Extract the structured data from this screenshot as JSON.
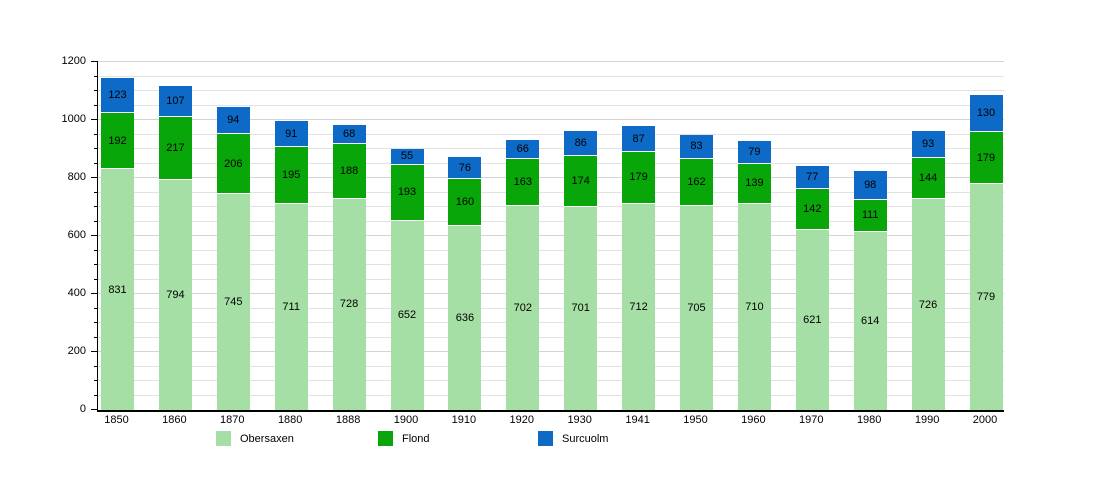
{
  "chart_data": {
    "type": "bar",
    "stacked": true,
    "title": "",
    "xlabel": "",
    "ylabel": "",
    "categories": [
      "1850",
      "1860",
      "1870",
      "1880",
      "1888",
      "1900",
      "1910",
      "1920",
      "1930",
      "1941",
      "1950",
      "1960",
      "1970",
      "1980",
      "1990",
      "2000"
    ],
    "series": [
      {
        "name": "Obersaxen",
        "color": "#a6dfa6",
        "values": [
          831,
          794,
          745,
          711,
          728,
          652,
          636,
          702,
          701,
          712,
          705,
          710,
          621,
          614,
          726,
          779
        ]
      },
      {
        "name": "Flond",
        "color": "#09a609",
        "values": [
          192,
          217,
          206,
          195,
          188,
          193,
          160,
          163,
          174,
          179,
          162,
          139,
          142,
          111,
          144,
          179
        ]
      },
      {
        "name": "Surcuolm",
        "color": "#0d6bc7",
        "values": [
          123,
          107,
          94,
          91,
          68,
          55,
          76,
          66,
          86,
          87,
          83,
          79,
          77,
          98,
          93,
          130
        ]
      }
    ],
    "ylim": [
      0,
      1200
    ],
    "y_major_step": 200,
    "y_minor_step": 50,
    "grid": true,
    "bar_value_labels": true,
    "legend_position": "bottom"
  }
}
